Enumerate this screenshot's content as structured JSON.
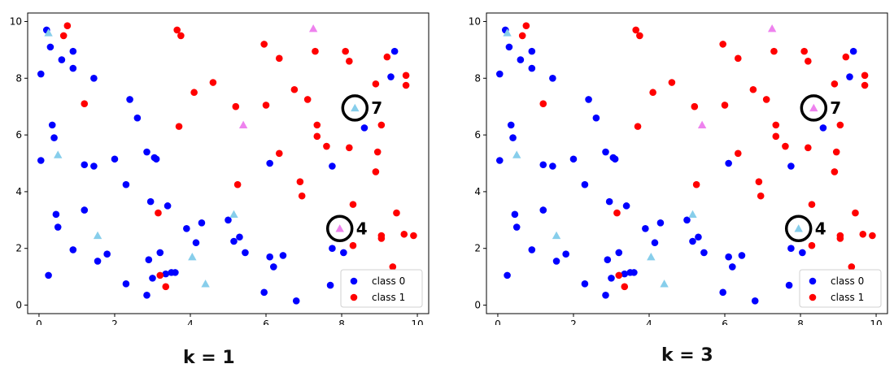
{
  "chart_data": [
    {
      "type": "scatter",
      "caption": "k = 1",
      "xlim": [
        -0.3,
        10.3
      ],
      "ylim": [
        -0.3,
        10.3
      ],
      "xticks": [
        "0",
        "2",
        "4",
        "6",
        "8",
        "10"
      ],
      "yticks": [
        "0",
        "2",
        "4",
        "6",
        "8",
        "10"
      ],
      "legend": {
        "placement": "lower-right",
        "entries": [
          "class 0",
          "class 1"
        ]
      },
      "grid": false,
      "colors": {
        "class0": "#0000ff",
        "class1": "#ff0000",
        "test_class0": "#87ceeb",
        "test_class1": "#ee82ee"
      },
      "annotations": [
        {
          "label": "7",
          "x": 8.35,
          "y": 6.95,
          "predicted": "class0"
        },
        {
          "label": "4",
          "x": 7.95,
          "y": 2.7,
          "predicted": "class1"
        }
      ],
      "test_points": [
        {
          "x": 0.25,
          "y": 9.6,
          "c": "class0"
        },
        {
          "x": 0.5,
          "y": 5.3,
          "c": "class0"
        },
        {
          "x": 1.55,
          "y": 2.45,
          "c": "class0"
        },
        {
          "x": 4.05,
          "y": 1.7,
          "c": "class0"
        },
        {
          "x": 4.4,
          "y": 0.75,
          "c": "class0"
        },
        {
          "x": 5.15,
          "y": 3.2,
          "c": "class0"
        },
        {
          "x": 7.25,
          "y": 9.75,
          "c": "class1"
        },
        {
          "x": 5.4,
          "y": 6.35,
          "c": "class1"
        }
      ],
      "class0": [
        [
          0.2,
          9.7
        ],
        [
          0.3,
          9.1
        ],
        [
          0.6,
          8.65
        ],
        [
          0.9,
          8.95
        ],
        [
          0.9,
          8.35
        ],
        [
          0.05,
          8.15
        ],
        [
          1.45,
          8.0
        ],
        [
          0.35,
          6.35
        ],
        [
          0.4,
          5.9
        ],
        [
          0.05,
          5.1
        ],
        [
          1.2,
          4.95
        ],
        [
          1.45,
          4.9
        ],
        [
          2.0,
          5.15
        ],
        [
          2.3,
          4.25
        ],
        [
          2.4,
          7.25
        ],
        [
          2.6,
          6.6
        ],
        [
          2.85,
          5.4
        ],
        [
          3.05,
          5.2
        ],
        [
          3.1,
          5.15
        ],
        [
          0.45,
          3.2
        ],
        [
          0.5,
          2.75
        ],
        [
          1.2,
          3.35
        ],
        [
          0.9,
          1.95
        ],
        [
          0.25,
          1.05
        ],
        [
          1.55,
          1.55
        ],
        [
          1.8,
          1.8
        ],
        [
          2.3,
          0.75
        ],
        [
          2.85,
          0.35
        ],
        [
          2.95,
          3.65
        ],
        [
          2.9,
          1.6
        ],
        [
          3.0,
          0.95
        ],
        [
          3.2,
          1.85
        ],
        [
          3.35,
          1.1
        ],
        [
          3.5,
          1.15
        ],
        [
          3.6,
          1.15
        ],
        [
          3.4,
          3.5
        ],
        [
          3.9,
          2.7
        ],
        [
          4.15,
          2.2
        ],
        [
          4.3,
          2.9
        ],
        [
          5.0,
          3.0
        ],
        [
          5.15,
          2.25
        ],
        [
          5.3,
          2.4
        ],
        [
          5.45,
          1.85
        ],
        [
          5.95,
          0.45
        ],
        [
          6.1,
          1.7
        ],
        [
          6.2,
          1.35
        ],
        [
          6.45,
          1.75
        ],
        [
          6.1,
          5.0
        ],
        [
          6.8,
          0.15
        ],
        [
          7.7,
          0.7
        ],
        [
          7.75,
          2.0
        ],
        [
          7.75,
          4.9
        ],
        [
          8.05,
          1.85
        ],
        [
          8.6,
          6.25
        ],
        [
          9.3,
          8.05
        ],
        [
          9.4,
          8.95
        ]
      ],
      "class1": [
        [
          0.65,
          9.5
        ],
        [
          0.75,
          9.85
        ],
        [
          1.2,
          7.1
        ],
        [
          3.65,
          9.7
        ],
        [
          3.75,
          9.5
        ],
        [
          3.7,
          6.3
        ],
        [
          4.1,
          7.5
        ],
        [
          4.6,
          7.85
        ],
        [
          5.2,
          7.0
        ],
        [
          5.25,
          4.25
        ],
        [
          5.95,
          9.2
        ],
        [
          6.0,
          7.05
        ],
        [
          6.35,
          8.7
        ],
        [
          6.35,
          5.35
        ],
        [
          6.75,
          7.6
        ],
        [
          6.9,
          4.35
        ],
        [
          6.95,
          3.85
        ],
        [
          7.1,
          7.25
        ],
        [
          7.3,
          8.95
        ],
        [
          7.35,
          6.35
        ],
        [
          7.35,
          5.95
        ],
        [
          7.6,
          5.6
        ],
        [
          8.1,
          8.95
        ],
        [
          8.2,
          8.6
        ],
        [
          8.2,
          5.55
        ],
        [
          8.3,
          3.55
        ],
        [
          8.3,
          2.1
        ],
        [
          8.9,
          7.8
        ],
        [
          8.9,
          4.7
        ],
        [
          8.95,
          5.4
        ],
        [
          9.05,
          6.35
        ],
        [
          9.05,
          2.45
        ],
        [
          9.05,
          2.35
        ],
        [
          9.2,
          8.75
        ],
        [
          9.35,
          1.35
        ],
        [
          9.45,
          3.25
        ],
        [
          9.65,
          2.5
        ],
        [
          9.7,
          8.1
        ],
        [
          9.7,
          7.75
        ],
        [
          9.9,
          2.45
        ],
        [
          3.15,
          3.25
        ],
        [
          3.2,
          1.05
        ],
        [
          3.35,
          0.65
        ]
      ]
    },
    {
      "type": "scatter",
      "caption": "k = 3",
      "xlim": [
        -0.3,
        10.3
      ],
      "ylim": [
        -0.3,
        10.3
      ],
      "xticks": [
        "0",
        "2",
        "4",
        "6",
        "8",
        "10"
      ],
      "yticks": [
        "0",
        "2",
        "4",
        "6",
        "8",
        "10"
      ],
      "legend": {
        "placement": "lower-right",
        "entries": [
          "class 0",
          "class 1"
        ]
      },
      "grid": false,
      "colors": {
        "class0": "#0000ff",
        "class1": "#ff0000",
        "test_class0": "#87ceeb",
        "test_class1": "#ee82ee"
      },
      "annotations": [
        {
          "label": "7",
          "x": 8.35,
          "y": 6.95,
          "predicted": "class1"
        },
        {
          "label": "4",
          "x": 7.95,
          "y": 2.7,
          "predicted": "class0"
        }
      ],
      "test_points": [
        {
          "x": 0.25,
          "y": 9.6,
          "c": "class0"
        },
        {
          "x": 0.5,
          "y": 5.3,
          "c": "class0"
        },
        {
          "x": 1.55,
          "y": 2.45,
          "c": "class0"
        },
        {
          "x": 4.05,
          "y": 1.7,
          "c": "class0"
        },
        {
          "x": 4.4,
          "y": 0.75,
          "c": "class0"
        },
        {
          "x": 5.15,
          "y": 3.2,
          "c": "class0"
        },
        {
          "x": 7.25,
          "y": 9.75,
          "c": "class1"
        },
        {
          "x": 5.4,
          "y": 6.35,
          "c": "class1"
        }
      ],
      "class0": [
        [
          0.2,
          9.7
        ],
        [
          0.3,
          9.1
        ],
        [
          0.6,
          8.65
        ],
        [
          0.9,
          8.95
        ],
        [
          0.9,
          8.35
        ],
        [
          0.05,
          8.15
        ],
        [
          1.45,
          8.0
        ],
        [
          0.35,
          6.35
        ],
        [
          0.4,
          5.9
        ],
        [
          0.05,
          5.1
        ],
        [
          1.2,
          4.95
        ],
        [
          1.45,
          4.9
        ],
        [
          2.0,
          5.15
        ],
        [
          2.3,
          4.25
        ],
        [
          2.4,
          7.25
        ],
        [
          2.6,
          6.6
        ],
        [
          2.85,
          5.4
        ],
        [
          3.05,
          5.2
        ],
        [
          3.1,
          5.15
        ],
        [
          0.45,
          3.2
        ],
        [
          0.5,
          2.75
        ],
        [
          1.2,
          3.35
        ],
        [
          0.9,
          1.95
        ],
        [
          0.25,
          1.05
        ],
        [
          1.55,
          1.55
        ],
        [
          1.8,
          1.8
        ],
        [
          2.3,
          0.75
        ],
        [
          2.85,
          0.35
        ],
        [
          2.95,
          3.65
        ],
        [
          2.9,
          1.6
        ],
        [
          3.0,
          0.95
        ],
        [
          3.2,
          1.85
        ],
        [
          3.35,
          1.1
        ],
        [
          3.5,
          1.15
        ],
        [
          3.6,
          1.15
        ],
        [
          3.4,
          3.5
        ],
        [
          3.9,
          2.7
        ],
        [
          4.15,
          2.2
        ],
        [
          4.3,
          2.9
        ],
        [
          5.0,
          3.0
        ],
        [
          5.15,
          2.25
        ],
        [
          5.3,
          2.4
        ],
        [
          5.45,
          1.85
        ],
        [
          5.95,
          0.45
        ],
        [
          6.1,
          1.7
        ],
        [
          6.2,
          1.35
        ],
        [
          6.45,
          1.75
        ],
        [
          6.1,
          5.0
        ],
        [
          6.8,
          0.15
        ],
        [
          7.7,
          0.7
        ],
        [
          7.75,
          2.0
        ],
        [
          7.75,
          4.9
        ],
        [
          8.05,
          1.85
        ],
        [
          8.6,
          6.25
        ],
        [
          9.3,
          8.05
        ],
        [
          9.4,
          8.95
        ]
      ],
      "class1": [
        [
          0.65,
          9.5
        ],
        [
          0.75,
          9.85
        ],
        [
          1.2,
          7.1
        ],
        [
          3.65,
          9.7
        ],
        [
          3.75,
          9.5
        ],
        [
          3.7,
          6.3
        ],
        [
          4.1,
          7.5
        ],
        [
          4.6,
          7.85
        ],
        [
          5.2,
          7.0
        ],
        [
          5.25,
          4.25
        ],
        [
          5.95,
          9.2
        ],
        [
          6.0,
          7.05
        ],
        [
          6.35,
          8.7
        ],
        [
          6.35,
          5.35
        ],
        [
          6.75,
          7.6
        ],
        [
          6.9,
          4.35
        ],
        [
          6.95,
          3.85
        ],
        [
          7.1,
          7.25
        ],
        [
          7.3,
          8.95
        ],
        [
          7.35,
          6.35
        ],
        [
          7.35,
          5.95
        ],
        [
          7.6,
          5.6
        ],
        [
          8.1,
          8.95
        ],
        [
          8.2,
          8.6
        ],
        [
          8.2,
          5.55
        ],
        [
          8.3,
          3.55
        ],
        [
          8.3,
          2.1
        ],
        [
          8.9,
          7.8
        ],
        [
          8.9,
          4.7
        ],
        [
          8.95,
          5.4
        ],
        [
          9.05,
          6.35
        ],
        [
          9.05,
          2.45
        ],
        [
          9.05,
          2.35
        ],
        [
          9.2,
          8.75
        ],
        [
          9.35,
          1.35
        ],
        [
          9.45,
          3.25
        ],
        [
          9.65,
          2.5
        ],
        [
          9.7,
          8.1
        ],
        [
          9.7,
          7.75
        ],
        [
          9.9,
          2.45
        ],
        [
          3.15,
          3.25
        ],
        [
          3.2,
          1.05
        ],
        [
          3.35,
          0.65
        ]
      ]
    }
  ]
}
